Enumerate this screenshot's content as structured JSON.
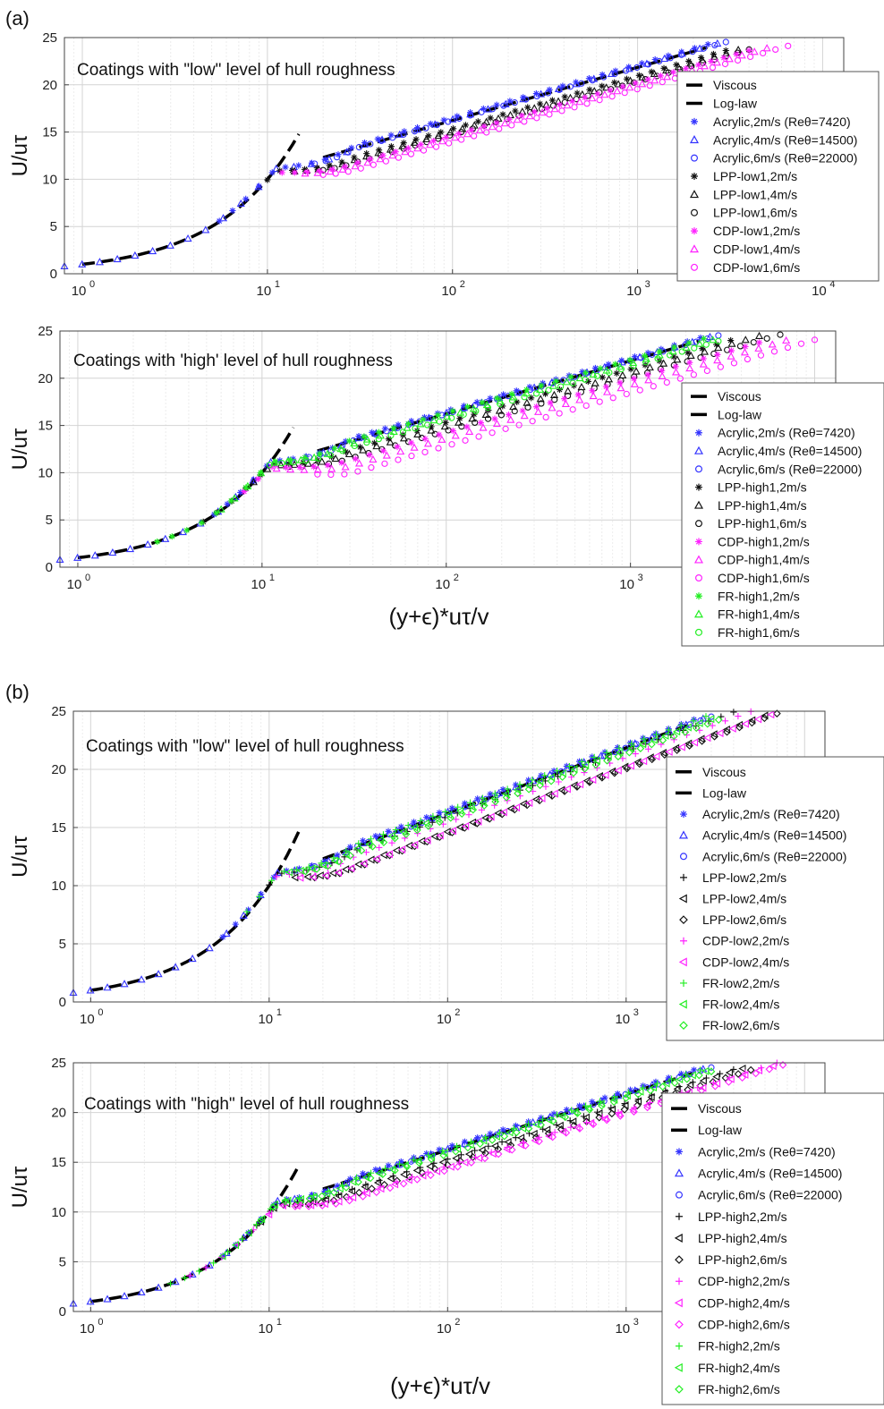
{
  "panels": [
    {
      "label": "(a)"
    },
    {
      "label": "(b)"
    }
  ],
  "chart_data": [
    {
      "type": "scatter",
      "x_scale": "log",
      "xlim": [
        0.8,
        13000
      ],
      "ylim": [
        0,
        25
      ],
      "yticks": [
        0,
        5,
        10,
        15,
        20,
        25
      ],
      "xticks": [
        1,
        10,
        100,
        1000,
        10000
      ],
      "xtick_labels": [
        "10",
        "10",
        "10",
        "10",
        "10"
      ],
      "xtick_exps": [
        "0",
        "1",
        "2",
        "3",
        "4"
      ],
      "ylabel": "U/uτ",
      "xlabel": "",
      "annotation": "Coatings with \"low\" level of hull roughness",
      "grid": true,
      "legend_placement": "right",
      "viscous": {
        "name": "Viscous",
        "x": [
          1,
          15
        ]
      },
      "loglaw": {
        "name": "Log-law",
        "x": [
          20,
          2500
        ]
      },
      "series": [
        {
          "name": "Acrylic,2m/s (Reθ=7420)",
          "marker": "asterisk",
          "color": "#3333ff",
          "x0": 5.5,
          "x1": 2400,
          "offset": 0.3
        },
        {
          "name": "Acrylic,4m/s (Reθ=14500)",
          "marker": "triangle",
          "color": "#3333ff",
          "x0": 0.8,
          "x1": 2700,
          "offset": 0.1
        },
        {
          "name": "Acrylic,6m/s (Reθ=22000)",
          "marker": "circle",
          "color": "#3333ff",
          "x0": 18,
          "x1": 3000,
          "offset": 0.0
        },
        {
          "name": "LPP-low1,2m/s",
          "marker": "asterisk",
          "color": "#111111",
          "x0": 10,
          "x1": 3000,
          "offset": -0.9
        },
        {
          "name": "LPP-low1,4m/s",
          "marker": "triangle",
          "color": "#111111",
          "x0": 14,
          "x1": 3500,
          "offset": -1.2
        },
        {
          "name": "LPP-low1,6m/s",
          "marker": "circle",
          "color": "#111111",
          "x0": 20,
          "x1": 4000,
          "offset": -1.5
        },
        {
          "name": "CDP-low1,2m/s",
          "marker": "asterisk",
          "color": "#ff22ff",
          "x0": 12,
          "x1": 4000,
          "offset": -1.6
        },
        {
          "name": "CDP-low1,4m/s",
          "marker": "triangle",
          "color": "#ff22ff",
          "x0": 16,
          "x1": 5000,
          "offset": -1.9
        },
        {
          "name": "CDP-low1,6m/s",
          "marker": "circle",
          "color": "#ff22ff",
          "x0": 20,
          "x1": 6500,
          "offset": -2.3
        }
      ]
    },
    {
      "type": "scatter",
      "x_scale": "log",
      "xlim": [
        0.8,
        13000
      ],
      "ylim": [
        0,
        25
      ],
      "yticks": [
        0,
        5,
        10,
        15,
        20,
        25
      ],
      "xticks": [
        1,
        10,
        100,
        1000
      ],
      "xtick_labels": [
        "10",
        "10",
        "10",
        "10"
      ],
      "xtick_exps": [
        "0",
        "1",
        "2",
        "3"
      ],
      "ylabel": "U/uτ",
      "xlabel": "(y+ϵ)*uτ/v",
      "annotation": "Coatings with 'high' level of hull roughness",
      "grid": true,
      "legend_placement": "right",
      "viscous": {
        "name": "Viscous",
        "x": [
          1,
          15
        ]
      },
      "loglaw": {
        "name": "Log-law",
        "x": [
          20,
          2500
        ]
      },
      "series": [
        {
          "name": "Acrylic,2m/s (Reθ=7420)",
          "marker": "asterisk",
          "color": "#3333ff",
          "x0": 5.5,
          "x1": 2400,
          "offset": 0.3
        },
        {
          "name": "Acrylic,4m/s (Reθ=14500)",
          "marker": "triangle",
          "color": "#3333ff",
          "x0": 0.8,
          "x1": 2700,
          "offset": 0.1
        },
        {
          "name": "Acrylic,6m/s (Reθ=22000)",
          "marker": "circle",
          "color": "#3333ff",
          "x0": 18,
          "x1": 3000,
          "offset": 0.0
        },
        {
          "name": "LPP-high1,2m/s",
          "marker": "asterisk",
          "color": "#111111",
          "x0": 4.8,
          "x1": 3500,
          "offset": -0.9
        },
        {
          "name": "LPP-high1,4m/s",
          "marker": "triangle",
          "color": "#111111",
          "x0": 9,
          "x1": 5000,
          "offset": -1.3
        },
        {
          "name": "LPP-high1,6m/s",
          "marker": "circle",
          "color": "#111111",
          "x0": 14,
          "x1": 6500,
          "offset": -1.8
        },
        {
          "name": "CDP-high1,2m/s",
          "marker": "asterisk",
          "color": "#ff22ff",
          "x0": 8,
          "x1": 5000,
          "offset": -2.0
        },
        {
          "name": "CDP-high1,4m/s",
          "marker": "triangle",
          "color": "#ff22ff",
          "x0": 12,
          "x1": 7000,
          "offset": -2.6
        },
        {
          "name": "CDP-high1,6m/s",
          "marker": "circle",
          "color": "#ff22ff",
          "x0": 20,
          "x1": 10000,
          "offset": -3.4
        },
        {
          "name": "FR-high1,2m/s",
          "marker": "asterisk",
          "color": "#22ee22",
          "x0": 2.7,
          "x1": 2500,
          "offset": 0.1
        },
        {
          "name": "FR-high1,4m/s",
          "marker": "triangle",
          "color": "#22ee22",
          "x0": 6,
          "x1": 2800,
          "offset": -0.3
        },
        {
          "name": "FR-high1,6m/s",
          "marker": "circle",
          "color": "#22ee22",
          "x0": 11,
          "x1": 3000,
          "offset": -0.6
        }
      ]
    },
    {
      "type": "scatter",
      "x_scale": "log",
      "xlim": [
        0.8,
        13000
      ],
      "ylim": [
        0,
        25
      ],
      "yticks": [
        0,
        5,
        10,
        15,
        20,
        25
      ],
      "xticks": [
        1,
        10,
        100,
        1000
      ],
      "xtick_labels": [
        "10",
        "10",
        "10",
        "10"
      ],
      "xtick_exps": [
        "0",
        "1",
        "2",
        "3"
      ],
      "ylabel": "U/uτ",
      "xlabel": "",
      "annotation": "Coatings with \"low\" level of hull roughness",
      "grid": true,
      "legend_placement": "right",
      "viscous": {
        "name": "Viscous",
        "x": [
          1,
          15
        ]
      },
      "loglaw": {
        "name": "Log-law",
        "x": [
          20,
          2500
        ]
      },
      "series": [
        {
          "name": "Acrylic,2m/s (Reθ=7420)",
          "marker": "asterisk",
          "color": "#3333ff",
          "x0": 5.5,
          "x1": 2400,
          "offset": 0.3
        },
        {
          "name": "Acrylic,4m/s (Reθ=14500)",
          "marker": "triangle",
          "color": "#3333ff",
          "x0": 0.8,
          "x1": 2700,
          "offset": 0.1
        },
        {
          "name": "Acrylic,6m/s (Reθ=22000)",
          "marker": "circle",
          "color": "#3333ff",
          "x0": 18,
          "x1": 3000,
          "offset": 0.0
        },
        {
          "name": "LPP-low2,2m/s",
          "marker": "plus",
          "color": "#111111",
          "x0": 10,
          "x1": 4000,
          "offset": -0.3
        },
        {
          "name": "LPP-low2,4m/s",
          "marker": "triangle-left",
          "color": "#111111",
          "x0": 14,
          "x1": 6000,
          "offset": -1.6
        },
        {
          "name": "LPP-low2,6m/s",
          "marker": "diamond",
          "color": "#111111",
          "x0": 18,
          "x1": 7000,
          "offset": -1.8
        },
        {
          "name": "CDP-low2,2m/s",
          "marker": "plus",
          "color": "#ff22ff",
          "x0": 11,
          "x1": 5000,
          "offset": -0.8
        },
        {
          "name": "CDP-low2,4m/s",
          "marker": "triangle-left",
          "color": "#ff22ff",
          "x0": 15,
          "x1": 6500,
          "offset": -1.7
        },
        {
          "name": "FR-low2,2m/s",
          "marker": "plus",
          "color": "#22ee22",
          "x0": 7.5,
          "x1": 2800,
          "offset": 0.2
        },
        {
          "name": "FR-low2,4m/s",
          "marker": "triangle-left",
          "color": "#22ee22",
          "x0": 13,
          "x1": 3000,
          "offset": -0.2
        },
        {
          "name": "FR-low2,6m/s",
          "marker": "diamond",
          "color": "#22ee22",
          "x0": 16,
          "x1": 3300,
          "offset": -0.5
        }
      ]
    },
    {
      "type": "scatter",
      "x_scale": "log",
      "xlim": [
        0.8,
        13000
      ],
      "ylim": [
        0,
        25
      ],
      "yticks": [
        0,
        5,
        10,
        15,
        20,
        25
      ],
      "xticks": [
        1,
        10,
        100,
        1000
      ],
      "xtick_labels": [
        "10",
        "10",
        "10",
        "10"
      ],
      "xtick_exps": [
        "0",
        "1",
        "2",
        "3"
      ],
      "ylabel": "U/uτ",
      "xlabel": "(y+ϵ)*uτ/v",
      "annotation": "Coatings with \"high\" level of hull roughness",
      "grid": true,
      "legend_placement": "right",
      "viscous": {
        "name": "Viscous",
        "x": [
          1,
          15
        ]
      },
      "loglaw": {
        "name": "Log-law",
        "x": [
          20,
          2500
        ]
      },
      "series": [
        {
          "name": "Acrylic,2m/s (Reθ=7420)",
          "marker": "asterisk",
          "color": "#3333ff",
          "x0": 5.5,
          "x1": 2400,
          "offset": 0.3
        },
        {
          "name": "Acrylic,4m/s (Reθ=14500)",
          "marker": "triangle",
          "color": "#3333ff",
          "x0": 0.8,
          "x1": 2700,
          "offset": 0.1
        },
        {
          "name": "Acrylic,6m/s (Reθ=22000)",
          "marker": "circle",
          "color": "#3333ff",
          "x0": 18,
          "x1": 3000,
          "offset": 0.0
        },
        {
          "name": "LPP-high2,2m/s",
          "marker": "plus",
          "color": "#111111",
          "x0": 6,
          "x1": 4000,
          "offset": -0.9
        },
        {
          "name": "LPP-high2,4m/s",
          "marker": "triangle-left",
          "color": "#111111",
          "x0": 9,
          "x1": 4500,
          "offset": -1.1
        },
        {
          "name": "LPP-high2,6m/s",
          "marker": "diamond",
          "color": "#111111",
          "x0": 12,
          "x1": 5000,
          "offset": -1.5
        },
        {
          "name": "CDP-high2,2m/s",
          "marker": "plus",
          "color": "#ff22ff",
          "x0": 3.6,
          "x1": 7000,
          "offset": -1.6
        },
        {
          "name": "CDP-high2,4m/s",
          "marker": "triangle-left",
          "color": "#ff22ff",
          "x0": 10,
          "x1": 8000,
          "offset": -1.8
        },
        {
          "name": "CDP-high2,6m/s",
          "marker": "diamond",
          "color": "#ff22ff",
          "x0": 14,
          "x1": 9000,
          "offset": -2.0
        },
        {
          "name": "FR-high2,2m/s",
          "marker": "plus",
          "color": "#22ee22",
          "x0": 2.8,
          "x1": 2600,
          "offset": 0.1
        },
        {
          "name": "FR-high2,4m/s",
          "marker": "triangle-left",
          "color": "#22ee22",
          "x0": 5.5,
          "x1": 2800,
          "offset": -0.2
        },
        {
          "name": "FR-high2,6m/s",
          "marker": "diamond",
          "color": "#22ee22",
          "x0": 9,
          "x1": 3000,
          "offset": -0.4
        }
      ]
    }
  ]
}
